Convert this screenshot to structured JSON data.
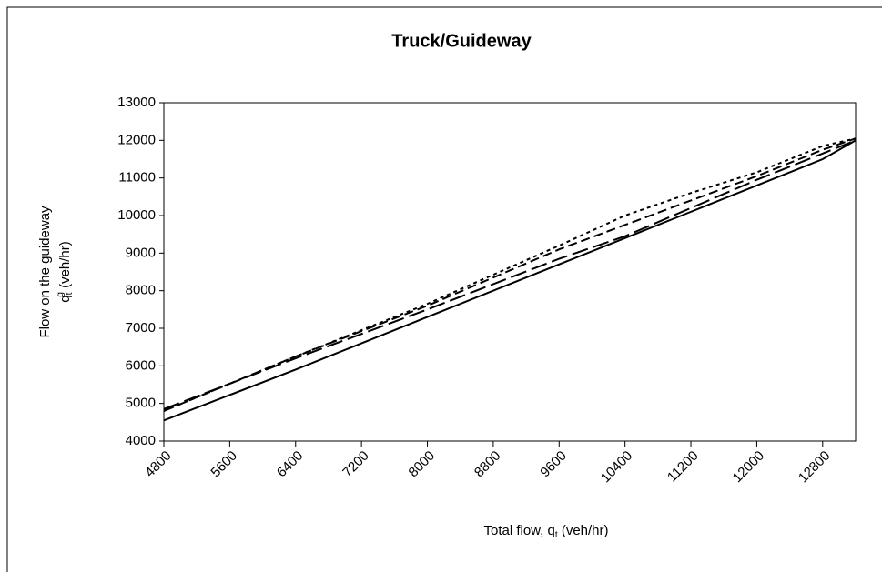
{
  "chart_data": {
    "type": "line",
    "title": "Truck/Guideway",
    "y_label": [
      "Flow on the guideway",
      "q",
      "t",
      "g",
      " (veh/hr)"
    ],
    "x_label": [
      "Total flow, q",
      "t",
      " (veh/hr)"
    ],
    "x": [
      4800,
      6400,
      8000,
      9600,
      10400,
      11200,
      12000,
      12800,
      13200
    ],
    "series": [
      {
        "color": "#000000",
        "dash": "solid",
        "values": [
          4550,
          5900,
          7300,
          8700,
          9400,
          10100,
          10800,
          11500,
          12000
        ]
      },
      {
        "color": "#000000",
        "dash": "longdash",
        "values": [
          4850,
          6200,
          7500,
          8850,
          9450,
          10200,
          10950,
          11650,
          12000
        ]
      },
      {
        "color": "#000000",
        "dash": "dash",
        "values": [
          4800,
          6250,
          7600,
          9100,
          9750,
          10400,
          11050,
          11750,
          12050
        ]
      },
      {
        "color": "#000000",
        "dash": "dot",
        "values": [
          4800,
          6250,
          7650,
          9200,
          10000,
          10600,
          11150,
          11850,
          12050
        ]
      }
    ],
    "xlim": [
      4800,
      13200
    ],
    "xticks": [
      4800,
      5600,
      6400,
      7200,
      8000,
      8800,
      9600,
      10400,
      11200,
      12000,
      12800
    ],
    "ylim": [
      4000,
      13000
    ],
    "yticks": [
      4000,
      5000,
      6000,
      7000,
      8000,
      9000,
      10000,
      11000,
      12000,
      13000
    ],
    "grid": false
  }
}
